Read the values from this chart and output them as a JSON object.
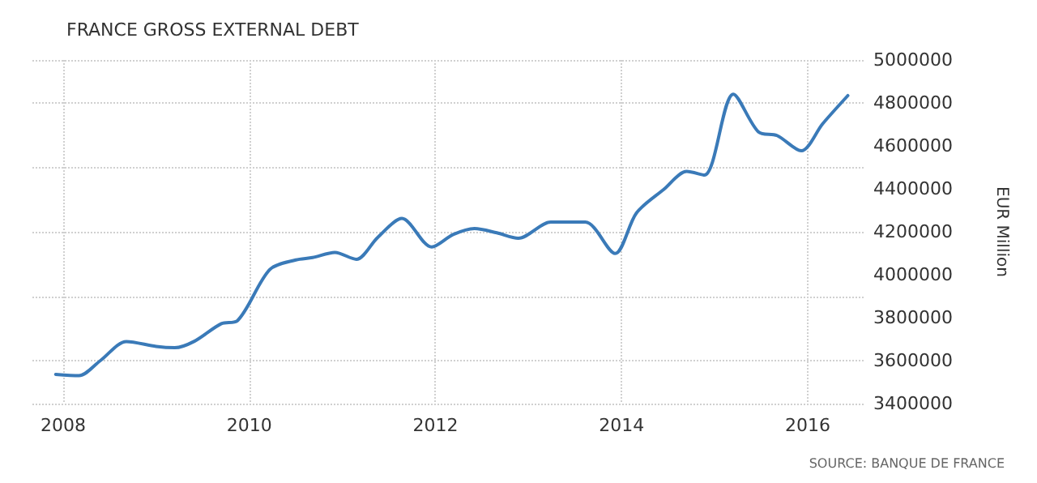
{
  "chart_data": {
    "type": "line",
    "title": "FRANCE GROSS EXTERNAL DEBT",
    "ylabel": "EUR Million",
    "annotations": [
      "SOURCE: BANQUE DE FRANCE"
    ],
    "x": [
      2007.92,
      2008.17,
      2008.4,
      2008.68,
      2009.0,
      2009.2,
      2009.41,
      2009.7,
      2009.87,
      2010.22,
      2010.5,
      2010.68,
      2010.92,
      2011.15,
      2011.38,
      2011.64,
      2011.96,
      2012.19,
      2012.42,
      2012.66,
      2012.89,
      2013.24,
      2013.61,
      2013.93,
      2014.16,
      2014.45,
      2014.7,
      2014.89,
      2015.2,
      2015.47,
      2015.67,
      2015.93,
      2016.16,
      2016.43
    ],
    "series": [
      {
        "color": "#3a7ab8",
        "values": [
          3536000,
          3530000,
          3600000,
          3689000,
          3666000,
          3660000,
          3690000,
          3772000,
          3785000,
          4024000,
          4069000,
          4080000,
          4104000,
          4072000,
          4174000,
          4262000,
          4129000,
          4187000,
          4215000,
          4195000,
          4170000,
          4245000,
          4245000,
          4099000,
          4288000,
          4396000,
          4481000,
          4464000,
          4841000,
          4665000,
          4648000,
          4577000,
          4703000,
          4834000
        ]
      }
    ],
    "xlim": [
      2007.67,
      2016.6
    ],
    "xticks": [
      2008,
      2010,
      2012,
      2014,
      2016
    ],
    "ylim": [
      3400000,
      5000000
    ],
    "yticks": [
      3400000,
      3600000,
      3800000,
      4000000,
      4200000,
      4400000,
      4600000,
      4800000,
      5000000
    ],
    "grid": true,
    "marker": "none",
    "line_style": "solid"
  }
}
